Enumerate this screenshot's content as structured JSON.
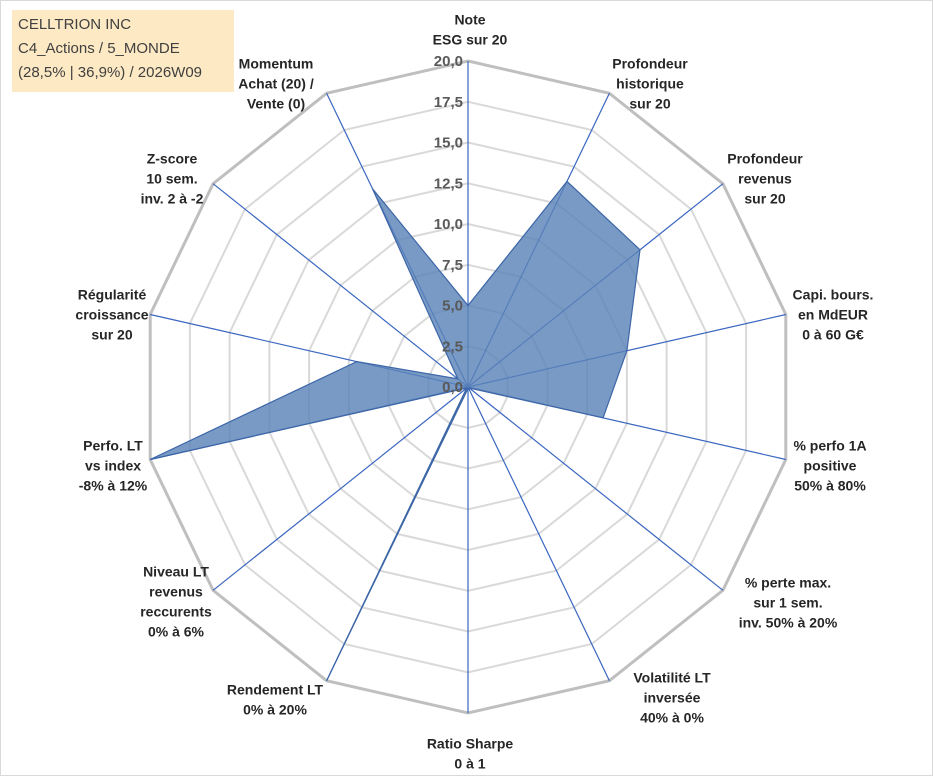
{
  "info": {
    "line1": "CELLTRION INC",
    "line2": "C4_Actions / 5_MONDE",
    "line3": "(28,5% | 36,9%) / 2026W09"
  },
  "colors": {
    "fill": "#5b84b8",
    "stroke": "#3d66a7",
    "spoke": "#3a66c0",
    "ring_outer": "#bfbfbf",
    "ring_inner": "#d9d9d9"
  },
  "chart_data": {
    "type": "radar",
    "title": "",
    "rmax": 20,
    "ticks": [
      "0,0",
      "2,5",
      "5,0",
      "7,5",
      "10,0",
      "12,5",
      "15,0",
      "17,5",
      "20,0"
    ],
    "axes": [
      {
        "lines": [
          "Note",
          "ESG sur 20"
        ]
      },
      {
        "lines": [
          "Profondeur",
          "historique",
          "sur 20"
        ]
      },
      {
        "lines": [
          "Profondeur",
          "revenus",
          "sur 20"
        ]
      },
      {
        "lines": [
          "Capi. bours.",
          "en MdEUR",
          "0 à 60 G€"
        ]
      },
      {
        "lines": [
          "% perfo 1A",
          "positive",
          "50% à 80%"
        ]
      },
      {
        "lines": [
          "% perte max.",
          "sur 1 sem.",
          "inv. 50% à 20%"
        ]
      },
      {
        "lines": [
          "Volatilité LT",
          "inversée",
          "40% à 0%"
        ]
      },
      {
        "lines": [
          "Ratio Sharpe",
          "0 à 1"
        ]
      },
      {
        "lines": [
          "Rendement LT",
          "0% à 20%"
        ]
      },
      {
        "lines": [
          "Niveau LT",
          "revenus",
          "reccurents",
          "0% à 6%"
        ]
      },
      {
        "lines": [
          "Perfo. LT",
          "vs index",
          "-8% à 12%"
        ]
      },
      {
        "lines": [
          "Régularité",
          "croissance",
          "sur 20"
        ]
      },
      {
        "lines": [
          "Z-score",
          "10 sem.",
          "inv. 2 à -2"
        ]
      },
      {
        "lines": [
          "Momentum",
          "Achat (20) /",
          "Vente (0)"
        ]
      }
    ],
    "series": [
      {
        "values": [
          5.0,
          14.0,
          13.5,
          10.0,
          8.5,
          0.1,
          0.1,
          0.1,
          20.0,
          0.1,
          20.0,
          7.0,
          0.8,
          13.5
        ]
      }
    ]
  }
}
